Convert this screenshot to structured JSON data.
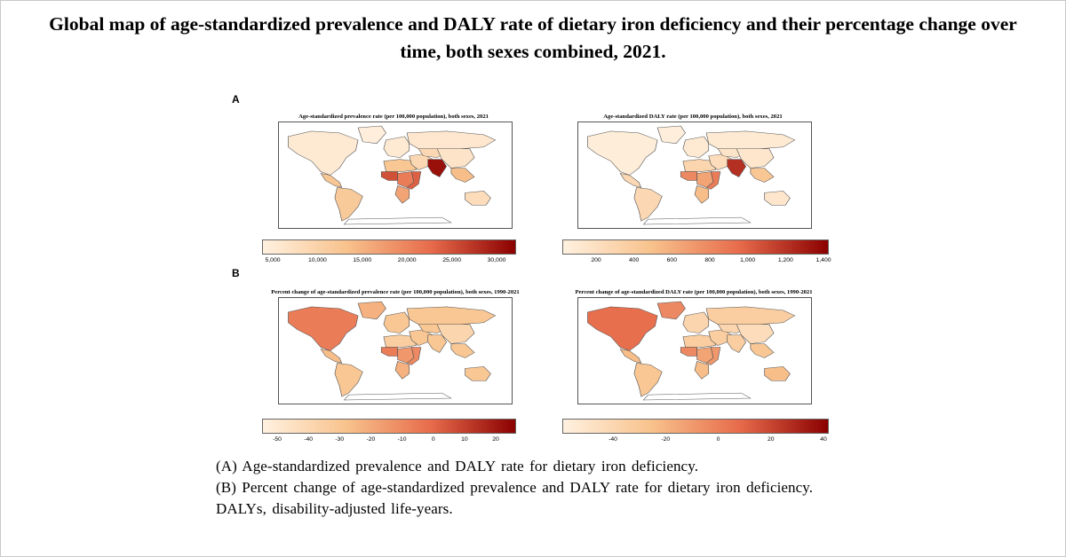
{
  "title": "Global map of age-standardized prevalence and DALY rate of dietary iron deficiency and their percentage change over time, both sexes combined, 2021.",
  "panels": [
    {
      "letter": "A",
      "maps": [
        {
          "title": "Age-standardized prevalence rate (per 100,000 population), both sexes, 2021",
          "scale": [
            "#fff1e0",
            "#f8c28c",
            "#e76b4b",
            "#8b0000"
          ],
          "ticks": [
            "5,000",
            "10,000",
            "15,000",
            "20,000",
            "25,000",
            "30,000"
          ],
          "levels": {
            "northAmerica": 0.05,
            "centralAmerica": 0.3,
            "southAmerica": 0.28,
            "europe": 0.05,
            "russia": 0.07,
            "westAfrica": 0.75,
            "centralAfrica": 0.6,
            "eastAfrica": 0.7,
            "southernAfrica": 0.45,
            "northAfrica": 0.3,
            "middleEast": 0.18,
            "southAsia": 0.95,
            "centralAsia": 0.18,
            "china": 0.1,
            "southeastAsia": 0.35,
            "oceania": 0.15,
            "greenland": 0.02,
            "antarctica": 0.0
          }
        },
        {
          "title": "Age-standardized DALY rate (per 100,000 population), both sexes, 2021",
          "scale": [
            "#fff1e0",
            "#f8c28c",
            "#e76b4b",
            "#8b0000"
          ],
          "ticks": [
            "200",
            "400",
            "600",
            "800",
            "1,000",
            "1,200",
            "1,400"
          ],
          "levels": {
            "northAmerica": 0.03,
            "centralAmerica": 0.18,
            "southAmerica": 0.18,
            "europe": 0.05,
            "russia": 0.05,
            "westAfrica": 0.55,
            "centralAfrica": 0.45,
            "eastAfrica": 0.6,
            "southernAfrica": 0.35,
            "northAfrica": 0.2,
            "middleEast": 0.15,
            "southAsia": 0.85,
            "centralAsia": 0.1,
            "china": 0.08,
            "southeastAsia": 0.3,
            "oceania": 0.08,
            "greenland": 0.02,
            "antarctica": 0.0
          }
        }
      ]
    },
    {
      "letter": "B",
      "maps": [
        {
          "title": "Percent change of age-standardized prevalence rate (per 100,000 population), both sexes, 1990-2021",
          "scale": [
            "#fff1e0",
            "#f8c28c",
            "#e76b4b",
            "#8b0000"
          ],
          "ticks": [
            "-50",
            "-40",
            "-30",
            "-20",
            "-10",
            "0",
            "10",
            "20"
          ],
          "levels": {
            "northAmerica": 0.6,
            "centralAmerica": 0.35,
            "southAmerica": 0.3,
            "europe": 0.3,
            "russia": 0.3,
            "westAfrica": 0.6,
            "centralAfrica": 0.5,
            "eastAfrica": 0.55,
            "southernAfrica": 0.4,
            "northAfrica": 0.25,
            "middleEast": 0.3,
            "southAsia": 0.3,
            "centralAsia": 0.3,
            "china": 0.2,
            "southeastAsia": 0.3,
            "oceania": 0.3,
            "greenland": 0.4,
            "antarctica": 0.0
          }
        },
        {
          "title": "Percent change of age-standardized DALY rate (per 100,000 population), both sexes, 1990-2021",
          "scale": [
            "#fff1e0",
            "#f8c28c",
            "#e76b4b",
            "#8b0000"
          ],
          "ticks": [
            "-40",
            "-20",
            "0",
            "20",
            "40"
          ],
          "levels": {
            "northAmerica": 0.65,
            "centralAmerica": 0.35,
            "southAmerica": 0.3,
            "europe": 0.2,
            "russia": 0.25,
            "westAfrica": 0.55,
            "centralAfrica": 0.45,
            "eastAfrica": 0.5,
            "southernAfrica": 0.35,
            "northAfrica": 0.25,
            "middleEast": 0.25,
            "southAsia": 0.25,
            "centralAsia": 0.2,
            "china": 0.15,
            "southeastAsia": 0.3,
            "oceania": 0.35,
            "greenland": 0.55,
            "antarctica": 0.0
          }
        }
      ]
    }
  ],
  "caption": [
    "(A) Age-standardized prevalence and DALY rate for dietary iron deficiency.",
    "(B) Percent change of age-standardized prevalence and DALY rate for dietary iron deficiency.",
    "DALYs, disability-adjusted life-years."
  ]
}
